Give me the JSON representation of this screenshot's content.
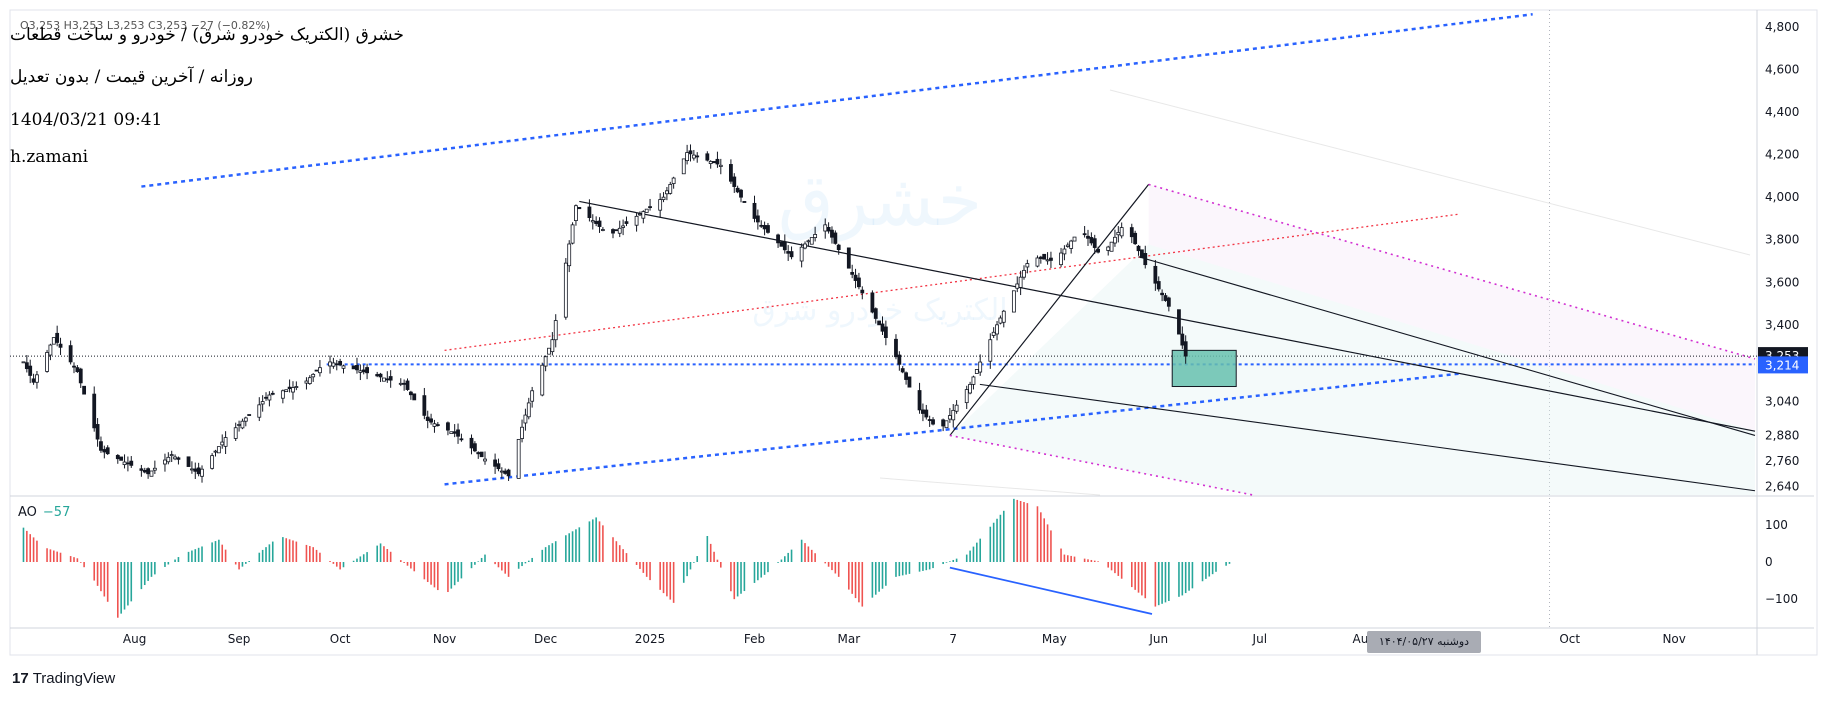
{
  "header": {
    "ohlc_text": "O3,253  H3,253  L3,253  C3,253  −27 (−0.82%)",
    "title": "خشرق (الکتریک خودرو شرق) / خودرو و ساخت قطعات",
    "subtitle": "روزانه / آخرین قیمت / بدون تعدیل",
    "datetime": "1404/03/21 09:41",
    "author": "h.zamani"
  },
  "watermark": {
    "symbol": "خشرق",
    "name": "الکتریک خودرو شرق"
  },
  "crosshair_date": "دوشنبه ۱۴۰۴/۰۵/۲۷",
  "branding": {
    "logo_mark": "17",
    "name": "TradingView"
  },
  "colors": {
    "up": "#131722",
    "down": "#131722",
    "ao_up": "#26a69a",
    "ao_down": "#ef5350",
    "channel_blue": "#2962ff",
    "red_line": "#f23645",
    "pitch_pink": "#d12fd1",
    "last_price_bg": "#131722",
    "level_bg": "#2962ff",
    "zone_fill": "#66c0ae"
  },
  "chart_data": [
    {
      "type": "candlestick",
      "title": "خشرق",
      "x_ticks": [
        {
          "date": "2024-08-01",
          "label": "Aug"
        },
        {
          "date": "2024-09-01",
          "label": "Sep"
        },
        {
          "date": "2024-10-01",
          "label": "Oct"
        },
        {
          "date": "2024-11-01",
          "label": "Nov"
        },
        {
          "date": "2024-12-01",
          "label": "Dec"
        },
        {
          "date": "2025-01-01",
          "label": "2025"
        },
        {
          "date": "2025-02-01",
          "label": "Feb"
        },
        {
          "date": "2025-03-01",
          "label": "Mar"
        },
        {
          "date": "2025-04-01",
          "label": "7"
        },
        {
          "date": "2025-05-01",
          "label": "May"
        },
        {
          "date": "2025-06-01",
          "label": "Jun"
        },
        {
          "date": "2025-07-01",
          "label": "Jul"
        },
        {
          "date": "2025-08-01",
          "label": "Aug"
        },
        {
          "date": "2025-09-01",
          "label": "Sep"
        },
        {
          "date": "2025-10-01",
          "label": "Oct"
        },
        {
          "date": "2025-11-01",
          "label": "Nov"
        }
      ],
      "y_ticks": [
        2640,
        2760,
        2880,
        3040,
        3400,
        3600,
        3800,
        4000,
        4200,
        4400,
        4600,
        4800
      ],
      "ylim": [
        2600,
        4880
      ],
      "xlim": [
        "2024-06-25",
        "2025-11-25"
      ],
      "last_price": {
        "value": 3253,
        "label": "3,253"
      },
      "level_price": {
        "value": 3214,
        "label": "3,214"
      },
      "waypoints": [
        [
          "2024-06-27",
          3290
        ],
        [
          "2024-07-02",
          3130
        ],
        [
          "2024-07-08",
          3340
        ],
        [
          "2024-07-15",
          3180
        ],
        [
          "2024-07-22",
          2810
        ],
        [
          "2024-08-05",
          2700
        ],
        [
          "2024-08-12",
          2790
        ],
        [
          "2024-08-20",
          2700
        ],
        [
          "2024-08-28",
          2870
        ],
        [
          "2024-09-10",
          3070
        ],
        [
          "2024-09-20",
          3120
        ],
        [
          "2024-09-27",
          3230
        ],
        [
          "2024-10-10",
          3170
        ],
        [
          "2024-10-20",
          3120
        ],
        [
          "2024-10-27",
          2950
        ],
        [
          "2024-11-04",
          2890
        ],
        [
          "2024-11-12",
          2780
        ],
        [
          "2024-11-20",
          2690
        ],
        [
          "2024-11-27",
          3090
        ],
        [
          "2024-12-03",
          3330
        ],
        [
          "2024-12-10",
          3960
        ],
        [
          "2024-12-20",
          3820
        ],
        [
          "2025-01-05",
          4000
        ],
        [
          "2025-01-12",
          4210
        ],
        [
          "2025-01-22",
          4150
        ],
        [
          "2025-02-01",
          3900
        ],
        [
          "2025-02-12",
          3720
        ],
        [
          "2025-02-22",
          3870
        ],
        [
          "2025-03-05",
          3550
        ],
        [
          "2025-03-15",
          3250
        ],
        [
          "2025-03-22",
          3000
        ],
        [
          "2025-03-28",
          2900
        ],
        [
          "2025-04-06",
          3120
        ],
        [
          "2025-04-14",
          3400
        ],
        [
          "2025-04-24",
          3720
        ],
        [
          "2025-05-01",
          3700
        ],
        [
          "2025-05-09",
          3850
        ],
        [
          "2025-05-15",
          3720
        ],
        [
          "2025-05-22",
          3880
        ],
        [
          "2025-05-29",
          3650
        ],
        [
          "2025-06-05",
          3460
        ],
        [
          "2025-06-09",
          3253
        ]
      ],
      "annotations": {
        "channel_upper": [
          [
            "2024-08-03",
            4050
          ],
          [
            "2025-09-20",
            4860
          ]
        ],
        "channel_lower": [
          [
            "2024-11-01",
            2650
          ],
          [
            "2025-08-29",
            3170
          ]
        ],
        "red_line": [
          [
            "2024-11-01",
            3280
          ],
          [
            "2025-08-29",
            3920
          ]
        ],
        "level_line": [
          [
            "2024-09-27",
            3214
          ],
          [
            "2025-11-25",
            3214
          ]
        ],
        "pitchfork_handle": [
          [
            "2025-03-31",
            2880
          ],
          [
            "2025-05-29",
            4060
          ]
        ],
        "pitchfork_mid": [
          [
            "2024-12-11",
            3980
          ],
          [
            "2025-11-25",
            2900
          ]
        ],
        "pitchfork_upper": [
          [
            "2025-05-29",
            4060
          ],
          [
            "2025-11-25",
            3240
          ]
        ],
        "pitchfork_lower": [
          [
            "2025-03-31",
            2880
          ],
          [
            "2025-06-29",
            2600
          ]
        ],
        "zone": [
          [
            "2025-06-05",
            3280
          ],
          [
            "2025-06-24",
            3110
          ]
        ],
        "zone_color": "#66c0ae"
      }
    },
    {
      "type": "bar",
      "title": "AO",
      "value_label": "−57",
      "y_ticks": [
        100,
        0,
        -100
      ],
      "ylim": [
        -175,
        175
      ],
      "waypoints": [
        [
          "2024-06-27",
          110
        ],
        [
          "2024-07-05",
          40
        ],
        [
          "2024-07-15",
          10
        ],
        [
          "2024-07-20",
          -50
        ],
        [
          "2024-07-27",
          -150
        ],
        [
          "2024-08-06",
          -40
        ],
        [
          "2024-08-15",
          20
        ],
        [
          "2024-08-26",
          60
        ],
        [
          "2024-09-01",
          -20
        ],
        [
          "2024-09-13",
          70
        ],
        [
          "2024-09-23",
          40
        ],
        [
          "2024-10-01",
          -20
        ],
        [
          "2024-10-13",
          50
        ],
        [
          "2024-10-23",
          -25
        ],
        [
          "2024-11-01",
          -90
        ],
        [
          "2024-11-13",
          20
        ],
        [
          "2024-11-20",
          -40
        ],
        [
          "2024-12-01",
          40
        ],
        [
          "2024-12-16",
          120
        ],
        [
          "2024-12-31",
          -40
        ],
        [
          "2025-01-08",
          -110
        ],
        [
          "2025-01-18",
          70
        ],
        [
          "2025-01-26",
          -100
        ],
        [
          "2025-02-06",
          -20
        ],
        [
          "2025-02-15",
          60
        ],
        [
          "2025-02-26",
          -40
        ],
        [
          "2025-03-05",
          -120
        ],
        [
          "2025-03-15",
          -40
        ],
        [
          "2025-03-25",
          -20
        ],
        [
          "2025-04-05",
          20
        ],
        [
          "2025-04-19",
          170
        ],
        [
          "2025-04-26",
          150
        ],
        [
          "2025-05-04",
          20
        ],
        [
          "2025-05-15",
          0
        ],
        [
          "2025-05-23",
          -60
        ],
        [
          "2025-05-31",
          -120
        ],
        [
          "2025-06-08",
          -90
        ],
        [
          "2025-06-19",
          -20
        ],
        [
          "2025-06-23",
          0
        ]
      ],
      "annotations": {
        "divergence_line": [
          [
            "2025-03-31",
            -15
          ],
          [
            "2025-05-30",
            -140
          ]
        ]
      }
    }
  ]
}
